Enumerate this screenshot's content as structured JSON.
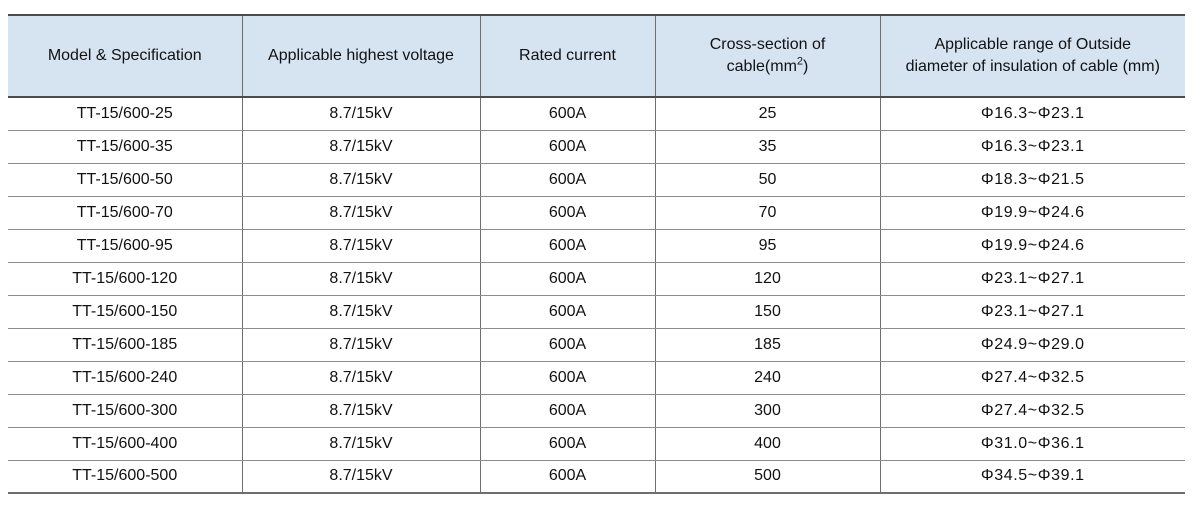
{
  "table": {
    "headers": {
      "model": "Model & Specification",
      "voltage": "Applicable highest voltage",
      "current": "Rated current",
      "cross_section": {
        "line1": "Cross-section of",
        "line2_pre": "cable(mm",
        "sup": "2",
        "line2_post": ")"
      },
      "diameter": {
        "line1": "Applicable range of Outside",
        "line2": "diameter of insulation of cable (mm)"
      }
    },
    "rows": [
      {
        "model": "TT-15/600-25",
        "voltage": "8.7/15kV",
        "current": "600A",
        "cross_section": "25",
        "diameter_range": "Φ16.3~Φ23.1"
      },
      {
        "model": "TT-15/600-35",
        "voltage": "8.7/15kV",
        "current": "600A",
        "cross_section": "35",
        "diameter_range": "Φ16.3~Φ23.1"
      },
      {
        "model": "TT-15/600-50",
        "voltage": "8.7/15kV",
        "current": "600A",
        "cross_section": "50",
        "diameter_range": "Φ18.3~Φ21.5"
      },
      {
        "model": "TT-15/600-70",
        "voltage": "8.7/15kV",
        "current": "600A",
        "cross_section": "70",
        "diameter_range": "Φ19.9~Φ24.6"
      },
      {
        "model": "TT-15/600-95",
        "voltage": "8.7/15kV",
        "current": "600A",
        "cross_section": "95",
        "diameter_range": "Φ19.9~Φ24.6"
      },
      {
        "model": "TT-15/600-120",
        "voltage": "8.7/15kV",
        "current": "600A",
        "cross_section": "120",
        "diameter_range": "Φ23.1~Φ27.1"
      },
      {
        "model": "TT-15/600-150",
        "voltage": "8.7/15kV",
        "current": "600A",
        "cross_section": "150",
        "diameter_range": "Φ23.1~Φ27.1"
      },
      {
        "model": "TT-15/600-185",
        "voltage": "8.7/15kV",
        "current": "600A",
        "cross_section": "185",
        "diameter_range": "Φ24.9~Φ29.0"
      },
      {
        "model": "TT-15/600-240",
        "voltage": "8.7/15kV",
        "current": "600A",
        "cross_section": "240",
        "diameter_range": "Φ27.4~Φ32.5"
      },
      {
        "model": "TT-15/600-300",
        "voltage": "8.7/15kV",
        "current": "600A",
        "cross_section": "300",
        "diameter_range": "Φ27.4~Φ32.5"
      },
      {
        "model": "TT-15/600-400",
        "voltage": "8.7/15kV",
        "current": "600A",
        "cross_section": "400",
        "diameter_range": "Φ31.0~Φ36.1"
      },
      {
        "model": "TT-15/600-500",
        "voltage": "8.7/15kV",
        "current": "600A",
        "cross_section": "500",
        "diameter_range": "Φ34.5~Φ39.1"
      }
    ],
    "colors": {
      "header_bg": "#d6e4f2"
    }
  }
}
